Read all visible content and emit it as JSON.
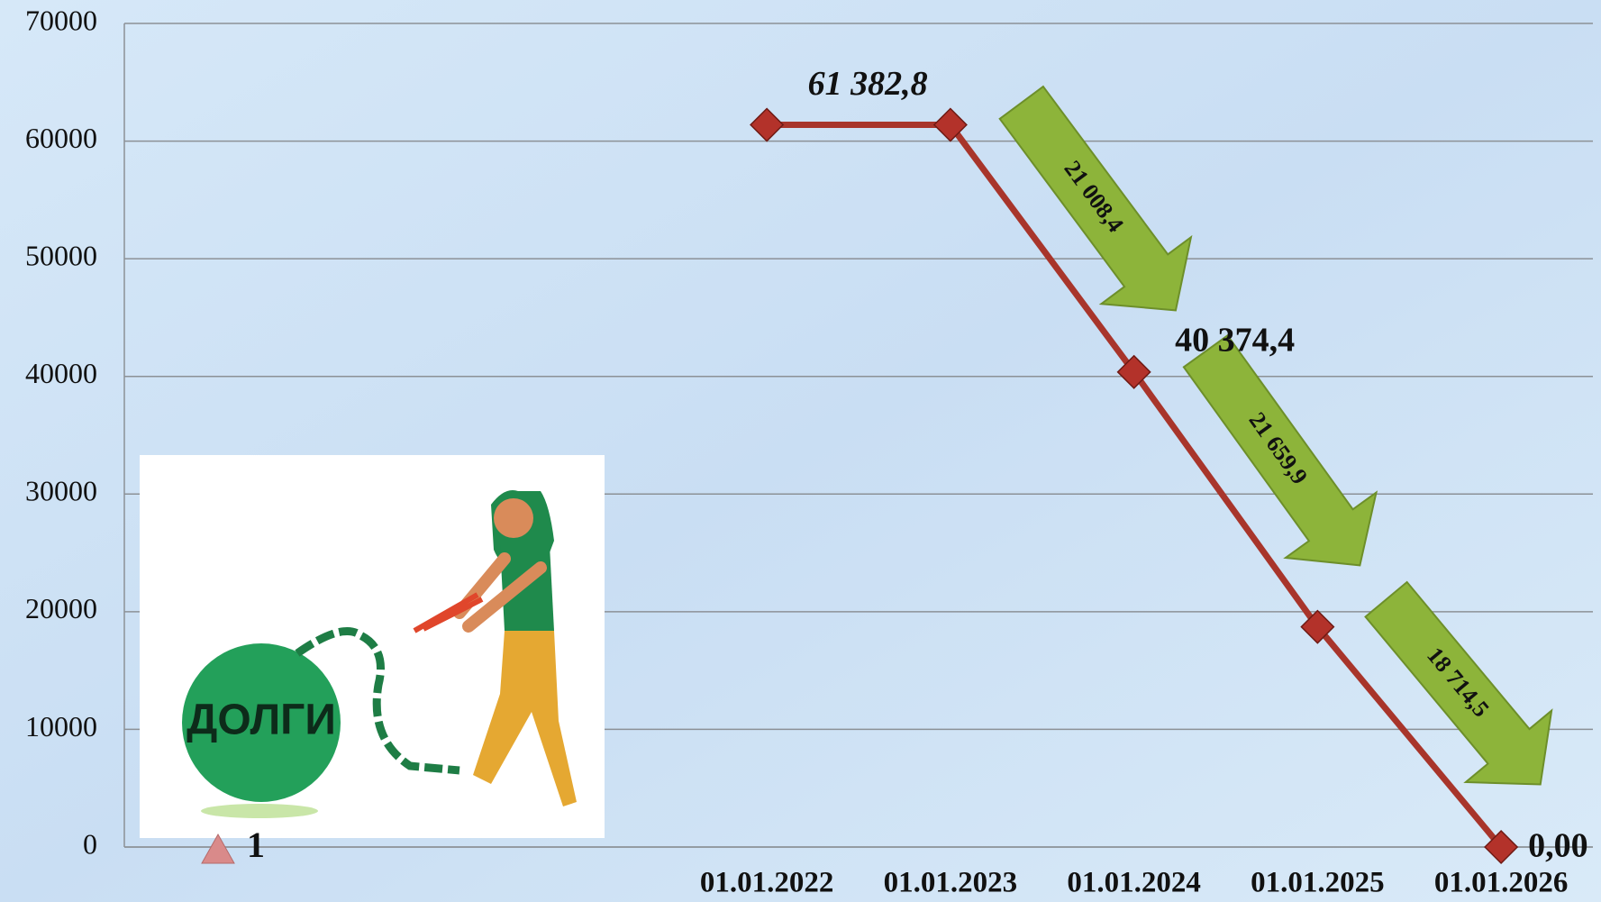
{
  "chart_data": {
    "type": "line",
    "categories": [
      null,
      null,
      null,
      "01.01.2022",
      "01.01.2023",
      "01.01.2024",
      "01.01.2025",
      "01.01.2026"
    ],
    "series": [
      {
        "name": "1",
        "color": "#a8352b",
        "values": [
          null,
          null,
          null,
          61382.8,
          61382.8,
          40374.4,
          18714.5,
          0
        ],
        "value_labels": [
          null,
          null,
          null,
          "61 382,8",
          null,
          "40 374,4",
          null,
          "0,00"
        ]
      }
    ],
    "annotations": [
      "21 008,4",
      "21 659,9",
      "18 714,5"
    ],
    "illustration_label": "ДОЛГИ",
    "ylim": [
      0,
      70000
    ],
    "yticks": [
      0,
      10000,
      20000,
      30000,
      40000,
      50000,
      60000,
      70000
    ],
    "grid": true,
    "legend": "bottom-left"
  }
}
